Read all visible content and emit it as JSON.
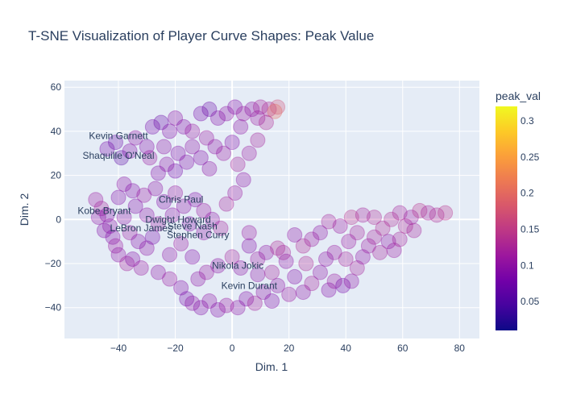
{
  "chart_data": {
    "type": "scatter",
    "title": "T-SNE Visualization of Player Curve Shapes: Peak Value",
    "xlabel": "Dim. 1",
    "ylabel": "Dim. 2",
    "xlim": [
      -59,
      87
    ],
    "ylim": [
      -54,
      63
    ],
    "xticks": [
      -40,
      -20,
      0,
      20,
      40,
      60,
      80
    ],
    "yticks": [
      -40,
      -20,
      0,
      20,
      40,
      60
    ],
    "grid": true,
    "colorbar": {
      "title": "peak_val",
      "range": [
        0.01,
        0.32
      ],
      "ticks": [
        0.05,
        0.1,
        0.15,
        0.2,
        0.25,
        0.3
      ],
      "colorscale": [
        "#0d0887",
        "#46039f",
        "#7201a8",
        "#9c179e",
        "#bd3786",
        "#d8576b",
        "#ed7953",
        "#fb9f3a",
        "#fdca26",
        "#f0f921"
      ]
    },
    "annotations": [
      {
        "text": "Kevin Garnett",
        "x": -40,
        "y": 38
      },
      {
        "text": "Shaquille O'Neal",
        "x": -40,
        "y": 29
      },
      {
        "text": "Chris Paul",
        "x": -18,
        "y": 9
      },
      {
        "text": "Kobe Bryant",
        "x": -45,
        "y": 4
      },
      {
        "text": "Dwight Howard",
        "x": -19,
        "y": 0
      },
      {
        "text": "Steve Nash",
        "x": -14,
        "y": -3
      },
      {
        "text": "LeBron James",
        "x": -32,
        "y": -4
      },
      {
        "text": "Stephen Curry",
        "x": -12,
        "y": -7
      },
      {
        "text": "Nikola Jokic",
        "x": 2,
        "y": -21
      },
      {
        "text": "Kevin Durant",
        "x": 6,
        "y": -30
      }
    ],
    "series": [
      {
        "values": [
          {
            "x": -48,
            "y": 9,
            "v": 0.11
          },
          {
            "x": -46,
            "y": 5,
            "v": 0.12
          },
          {
            "x": -44,
            "y": 2,
            "v": 0.09
          },
          {
            "x": -43,
            "y": -3,
            "v": 0.1
          },
          {
            "x": -42,
            "y": -8,
            "v": 0.09
          },
          {
            "x": -41,
            "y": -12,
            "v": 0.11
          },
          {
            "x": -40,
            "y": -16,
            "v": 0.1
          },
          {
            "x": -37,
            "y": -20,
            "v": 0.12
          },
          {
            "x": -35,
            "y": -18,
            "v": 0.09
          },
          {
            "x": -32,
            "y": -22,
            "v": 0.11
          },
          {
            "x": -30,
            "y": -13,
            "v": 0.1
          },
          {
            "x": -28,
            "y": -8,
            "v": 0.08
          },
          {
            "x": -26,
            "y": -24,
            "v": 0.1
          },
          {
            "x": -22,
            "y": -27,
            "v": 0.11
          },
          {
            "x": -18,
            "y": -31,
            "v": 0.09
          },
          {
            "x": -16,
            "y": -36,
            "v": 0.08
          },
          {
            "x": -14,
            "y": -38,
            "v": 0.1
          },
          {
            "x": -11,
            "y": -40,
            "v": 0.09
          },
          {
            "x": -8,
            "y": -37,
            "v": 0.1
          },
          {
            "x": -5,
            "y": -41,
            "v": 0.09
          },
          {
            "x": -2,
            "y": -39,
            "v": 0.11
          },
          {
            "x": 2,
            "y": -40,
            "v": 0.1
          },
          {
            "x": 5,
            "y": -36,
            "v": 0.09
          },
          {
            "x": 8,
            "y": -38,
            "v": 0.12
          },
          {
            "x": 11,
            "y": -33,
            "v": 0.1
          },
          {
            "x": 14,
            "y": -37,
            "v": 0.09
          },
          {
            "x": -12,
            "y": -27,
            "v": 0.1
          },
          {
            "x": -9,
            "y": -24,
            "v": 0.11
          },
          {
            "x": -5,
            "y": -21,
            "v": 0.1
          },
          {
            "x": 0,
            "y": -17,
            "v": 0.12
          },
          {
            "x": 3,
            "y": -22,
            "v": 0.1
          },
          {
            "x": 6,
            "y": -12,
            "v": 0.09
          },
          {
            "x": 9,
            "y": -18,
            "v": 0.11
          },
          {
            "x": 12,
            "y": -15,
            "v": 0.1
          },
          {
            "x": 16,
            "y": -13,
            "v": 0.13
          },
          {
            "x": 19,
            "y": -19,
            "v": 0.1
          },
          {
            "x": 22,
            "y": -26,
            "v": 0.09
          },
          {
            "x": 25,
            "y": -33,
            "v": 0.1
          },
          {
            "x": 28,
            "y": -29,
            "v": 0.12
          },
          {
            "x": 31,
            "y": -24,
            "v": 0.1
          },
          {
            "x": 34,
            "y": -32,
            "v": 0.09
          },
          {
            "x": 36,
            "y": -28,
            "v": 0.11
          },
          {
            "x": 39,
            "y": -30,
            "v": 0.08
          },
          {
            "x": 42,
            "y": -28,
            "v": 0.1
          },
          {
            "x": 44,
            "y": -22,
            "v": 0.12
          },
          {
            "x": 46,
            "y": -17,
            "v": 0.1
          },
          {
            "x": 48,
            "y": -12,
            "v": 0.11
          },
          {
            "x": 50,
            "y": -8,
            "v": 0.12
          },
          {
            "x": 53,
            "y": -4,
            "v": 0.13
          },
          {
            "x": 55,
            "y": -10,
            "v": 0.1
          },
          {
            "x": 57,
            "y": -14,
            "v": 0.11
          },
          {
            "x": 59,
            "y": -9,
            "v": 0.12
          },
          {
            "x": 61,
            "y": -3,
            "v": 0.13
          },
          {
            "x": 63,
            "y": 1,
            "v": 0.11
          },
          {
            "x": 66,
            "y": 4,
            "v": 0.14
          },
          {
            "x": 69,
            "y": 3,
            "v": 0.12
          },
          {
            "x": 72,
            "y": 2,
            "v": 0.13
          },
          {
            "x": 75,
            "y": 3,
            "v": 0.14
          },
          {
            "x": 59,
            "y": 3,
            "v": 0.12
          },
          {
            "x": 50,
            "y": 1,
            "v": 0.13
          },
          {
            "x": 46,
            "y": 2,
            "v": 0.12
          },
          {
            "x": 42,
            "y": 1,
            "v": 0.14
          },
          {
            "x": 38,
            "y": -3,
            "v": 0.11
          },
          {
            "x": 34,
            "y": -1,
            "v": 0.12
          },
          {
            "x": 31,
            "y": -6,
            "v": 0.1
          },
          {
            "x": 28,
            "y": -9,
            "v": 0.11
          },
          {
            "x": 25,
            "y": -12,
            "v": 0.13
          },
          {
            "x": 22,
            "y": -7,
            "v": 0.1
          },
          {
            "x": 18,
            "y": -15,
            "v": 0.12
          },
          {
            "x": 36,
            "y": -15,
            "v": 0.11
          },
          {
            "x": 40,
            "y": -18,
            "v": 0.12
          },
          {
            "x": 33,
            "y": -18,
            "v": 0.1
          },
          {
            "x": -44,
            "y": 32,
            "v": 0.08
          },
          {
            "x": -41,
            "y": 35,
            "v": 0.07
          },
          {
            "x": -39,
            "y": 28,
            "v": 0.06
          },
          {
            "x": -36,
            "y": 31,
            "v": 0.09
          },
          {
            "x": -34,
            "y": 37,
            "v": 0.1
          },
          {
            "x": -30,
            "y": 33,
            "v": 0.09
          },
          {
            "x": -28,
            "y": 42,
            "v": 0.08
          },
          {
            "x": -25,
            "y": 44,
            "v": 0.07
          },
          {
            "x": -22,
            "y": 40,
            "v": 0.09
          },
          {
            "x": -20,
            "y": 46,
            "v": 0.1
          },
          {
            "x": -17,
            "y": 42,
            "v": 0.09
          },
          {
            "x": -14,
            "y": 40,
            "v": 0.11
          },
          {
            "x": -11,
            "y": 48,
            "v": 0.08
          },
          {
            "x": -8,
            "y": 50,
            "v": 0.07
          },
          {
            "x": -5,
            "y": 46,
            "v": 0.09
          },
          {
            "x": -2,
            "y": 48,
            "v": 0.1
          },
          {
            "x": 1,
            "y": 51,
            "v": 0.09
          },
          {
            "x": 4,
            "y": 48,
            "v": 0.11
          },
          {
            "x": 7,
            "y": 50,
            "v": 0.1
          },
          {
            "x": 10,
            "y": 51,
            "v": 0.12
          },
          {
            "x": 13,
            "y": 50,
            "v": 0.13
          },
          {
            "x": 16,
            "y": 51,
            "v": 0.17
          },
          {
            "x": 15,
            "y": 49,
            "v": 0.2
          },
          {
            "x": 9,
            "y": 46,
            "v": 0.11
          },
          {
            "x": 3,
            "y": 42,
            "v": 0.1
          },
          {
            "x": 0,
            "y": 35,
            "v": 0.09
          },
          {
            "x": -3,
            "y": 30,
            "v": 0.11
          },
          {
            "x": 2,
            "y": 25,
            "v": 0.12
          },
          {
            "x": 4,
            "y": 18,
            "v": 0.1
          },
          {
            "x": 1,
            "y": 12,
            "v": 0.11
          },
          {
            "x": -2,
            "y": 7,
            "v": 0.12
          },
          {
            "x": -8,
            "y": 23,
            "v": 0.1
          },
          {
            "x": -11,
            "y": 28,
            "v": 0.09
          },
          {
            "x": -14,
            "y": 33,
            "v": 0.1
          },
          {
            "x": -9,
            "y": 37,
            "v": 0.11
          },
          {
            "x": -6,
            "y": 33,
            "v": 0.1
          },
          {
            "x": -16,
            "y": 26,
            "v": 0.09
          },
          {
            "x": -20,
            "y": 22,
            "v": 0.08
          },
          {
            "x": -23,
            "y": 25,
            "v": 0.1
          },
          {
            "x": -26,
            "y": 21,
            "v": 0.09
          },
          {
            "x": -29,
            "y": 28,
            "v": 0.11
          },
          {
            "x": -24,
            "y": 33,
            "v": 0.1
          },
          {
            "x": -19,
            "y": 30,
            "v": 0.09
          },
          {
            "x": -38,
            "y": 16,
            "v": 0.1
          },
          {
            "x": -35,
            "y": 13,
            "v": 0.09
          },
          {
            "x": -31,
            "y": 11,
            "v": 0.11
          },
          {
            "x": -27,
            "y": 14,
            "v": 0.1
          },
          {
            "x": -24,
            "y": 8,
            "v": 0.09
          },
          {
            "x": -20,
            "y": 12,
            "v": 0.11
          },
          {
            "x": -17,
            "y": 6,
            "v": 0.1
          },
          {
            "x": -13,
            "y": 9,
            "v": 0.09
          },
          {
            "x": -10,
            "y": 4,
            "v": 0.11
          },
          {
            "x": -7,
            "y": 0,
            "v": 0.1
          },
          {
            "x": -4,
            "y": -4,
            "v": 0.12
          },
          {
            "x": -10,
            "y": -6,
            "v": 0.1
          },
          {
            "x": -15,
            "y": -2,
            "v": 0.09
          },
          {
            "x": -21,
            "y": 2,
            "v": 0.1
          },
          {
            "x": -26,
            "y": -2,
            "v": 0.11
          },
          {
            "x": -30,
            "y": 2,
            "v": 0.1
          },
          {
            "x": -34,
            "y": 6,
            "v": 0.09
          },
          {
            "x": -38,
            "y": 1,
            "v": 0.1
          },
          {
            "x": -36,
            "y": -6,
            "v": 0.11
          },
          {
            "x": -33,
            "y": -10,
            "v": 0.09
          },
          {
            "x": -22,
            "y": -16,
            "v": 0.1
          },
          {
            "x": -18,
            "y": -11,
            "v": 0.11
          },
          {
            "x": -14,
            "y": -17,
            "v": 0.09
          },
          {
            "x": 6,
            "y": 30,
            "v": 0.11
          },
          {
            "x": 9,
            "y": 36,
            "v": 0.12
          },
          {
            "x": 12,
            "y": 44,
            "v": 0.13
          },
          {
            "x": -45,
            "y": -5,
            "v": 0.09
          },
          {
            "x": -47,
            "y": 1,
            "v": 0.1
          },
          {
            "x": -40,
            "y": 10,
            "v": 0.09
          },
          {
            "x": 6,
            "y": -6,
            "v": 0.11
          },
          {
            "x": 9,
            "y": -25,
            "v": 0.1
          },
          {
            "x": 14,
            "y": -24,
            "v": 0.12
          },
          {
            "x": 16,
            "y": -30,
            "v": 0.1
          },
          {
            "x": 20,
            "y": -34,
            "v": 0.11
          },
          {
            "x": 26,
            "y": -20,
            "v": 0.13
          },
          {
            "x": 44,
            "y": -6,
            "v": 0.12
          },
          {
            "x": 41,
            "y": -10,
            "v": 0.11
          },
          {
            "x": 52,
            "y": -15,
            "v": 0.12
          },
          {
            "x": 64,
            "y": -5,
            "v": 0.12
          },
          {
            "x": 56,
            "y": 0,
            "v": 0.13
          }
        ]
      }
    ]
  }
}
